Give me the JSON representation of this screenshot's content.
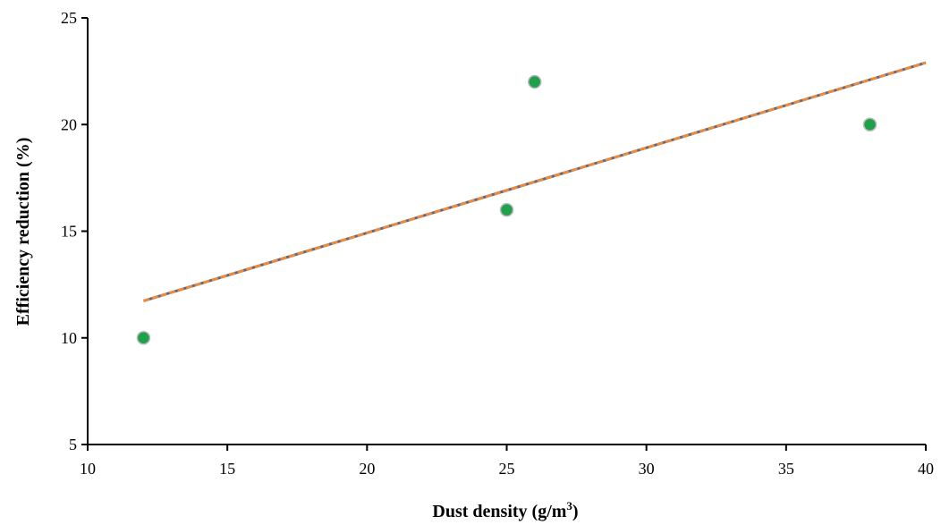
{
  "chart_data": {
    "type": "scatter",
    "xlabel_main": "Dust density (g/m",
    "xlabel_sup": "3",
    "xlabel_end": ")",
    "ylabel": "Efficiency reduction (%)",
    "xlim": [
      10,
      40
    ],
    "ylim": [
      5,
      25
    ],
    "x_ticks": [
      10,
      15,
      20,
      25,
      30,
      35,
      40
    ],
    "y_ticks": [
      5,
      10,
      15,
      20,
      25
    ],
    "grid": false,
    "series": [
      {
        "points": [
          {
            "x": 12,
            "y": 10
          },
          {
            "x": 25,
            "y": 16
          },
          {
            "x": 26,
            "y": 22
          },
          {
            "x": 38,
            "y": 20
          }
        ]
      }
    ],
    "trendline": {
      "type": "linear",
      "x_start": 12,
      "y_start": 11.73,
      "x_end": 40,
      "y_end": 22.9
    },
    "colors": {
      "points": "#1fa04a",
      "point_edge": "#b9b9b9",
      "trendline": "#ef8a3a",
      "trendline_under": "#5a6a86",
      "axis": "#000000"
    }
  }
}
